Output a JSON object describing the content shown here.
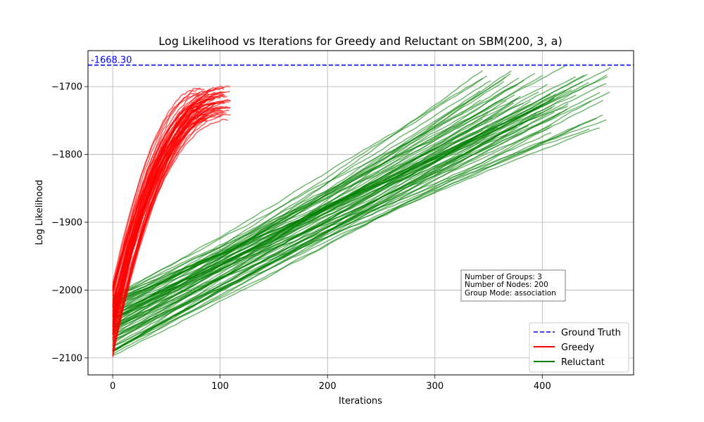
{
  "chart_data": {
    "type": "line",
    "title": "Log Likelihood vs Iterations for Greedy and Reluctant on SBM(200, 3, a)",
    "xlabel": "Iterations",
    "ylabel": "Log Likelihood",
    "xlim": [
      -23,
      485
    ],
    "ylim": [
      -2125,
      -1647
    ],
    "xticks": [
      0,
      100,
      200,
      300,
      400
    ],
    "yticks": [
      -2100,
      -2000,
      -1900,
      -1800,
      -1700
    ],
    "grid": true,
    "legend_position": "bottom-right",
    "reference_line": {
      "name": "Ground Truth",
      "value": -1668.3,
      "label": "-1668.30",
      "color": "#0000ff",
      "style": "dashed"
    },
    "info_box": {
      "lines": [
        "Number of Groups: 3",
        "Number of Nodes: 200",
        "Group Mode: association"
      ]
    },
    "series": [
      {
        "name": "Greedy",
        "color": "#ff0000",
        "runs": 60,
        "x_range": [
          0,
          110
        ],
        "start_y_range": [
          -2100,
          -1990
        ],
        "end_y_range": [
          -1750,
          -1700
        ]
      },
      {
        "name": "Reluctant",
        "color": "#008000",
        "runs": 80,
        "x_range": [
          0,
          465
        ],
        "start_y_range": [
          -2100,
          -1990
        ],
        "end_y_range": [
          -1760,
          -1670
        ]
      }
    ]
  },
  "legend": {
    "items": [
      {
        "label": "Ground Truth",
        "color": "#0000ff",
        "style": "dashed"
      },
      {
        "label": "Greedy",
        "color": "#ff0000",
        "style": "solid"
      },
      {
        "label": "Reluctant",
        "color": "#008000",
        "style": "solid"
      }
    ]
  }
}
